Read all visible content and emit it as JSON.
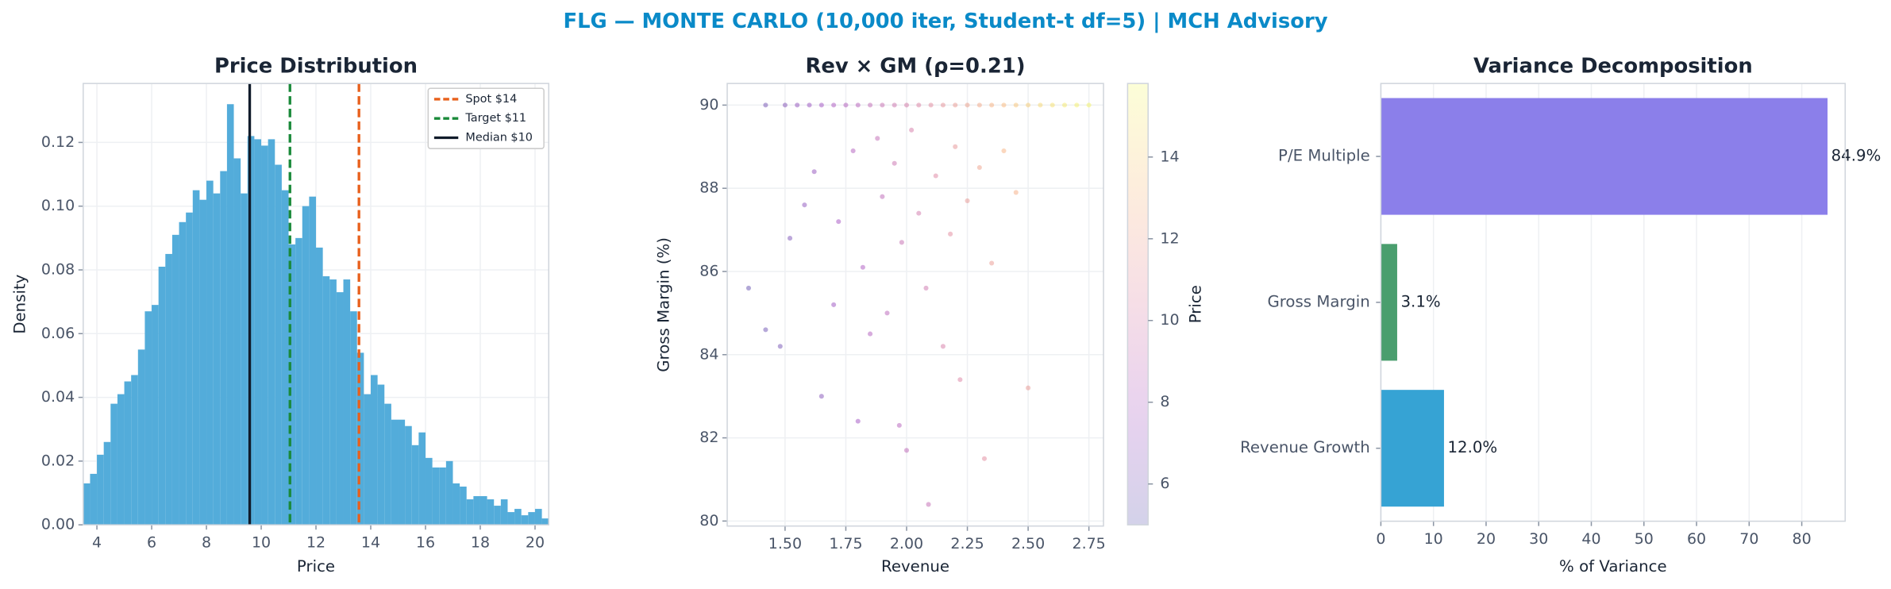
{
  "title": "FLG — MONTE CARLO (10,000 iter, Student-t df=5) | MCH Advisory",
  "chart_data": [
    {
      "type": "histogram",
      "title": "Price Distribution",
      "x_label": "Price",
      "y_label": "Density",
      "color": "#4aa8d8",
      "grid": true,
      "legend": "upper right",
      "bins": [
        3.5,
        3.75,
        4,
        4.25,
        4.5,
        4.75,
        5,
        5.25,
        5.5,
        5.75,
        6,
        6.25,
        6.5,
        6.75,
        7,
        7.25,
        7.5,
        7.75,
        8,
        8.25,
        8.5,
        8.75,
        9,
        9.25,
        9.5,
        9.75,
        10,
        10.25,
        10.5,
        10.75,
        11,
        11.25,
        11.5,
        11.75,
        12,
        12.25,
        12.5,
        12.75,
        13,
        13.25,
        13.5,
        13.75,
        14,
        14.25,
        14.5,
        14.75,
        15,
        15.25,
        15.5,
        15.75,
        16,
        16.25,
        16.5,
        16.75,
        17,
        17.25,
        17.5,
        17.75,
        18,
        18.25,
        18.5,
        18.75,
        19,
        19.25,
        19.5,
        19.75,
        20,
        20.25,
        20.5
      ],
      "values": [
        0.013,
        0.016,
        0.022,
        0.026,
        0.038,
        0.041,
        0.045,
        0.047,
        0.055,
        0.067,
        0.069,
        0.081,
        0.085,
        0.091,
        0.095,
        0.098,
        0.105,
        0.102,
        0.108,
        0.104,
        0.111,
        0.132,
        0.115,
        0.104,
        0.122,
        0.121,
        0.119,
        0.121,
        0.113,
        0.105,
        0.088,
        0.09,
        0.1,
        0.103,
        0.087,
        0.078,
        0.077,
        0.073,
        0.077,
        0.067,
        0.054,
        0.041,
        0.047,
        0.044,
        0.038,
        0.033,
        0.033,
        0.031,
        0.025,
        0.029,
        0.021,
        0.018,
        0.018,
        0.02,
        0.013,
        0.012,
        0.008,
        0.009,
        0.009,
        0.008,
        0.006,
        0.008,
        0.004,
        0.005,
        0.003,
        0.004,
        0.005,
        0.002
      ],
      "xlim": [
        3.5,
        20.5
      ],
      "xticks": [
        4,
        6,
        8,
        10,
        12,
        14,
        16,
        18,
        20
      ],
      "ylim": [
        0,
        0.1385
      ],
      "yticks": [
        {
          "value": 0,
          "label": "0.00"
        },
        {
          "value": 0.02,
          "label": "0.02"
        },
        {
          "value": 0.04,
          "label": "0.04"
        },
        {
          "value": 0.06,
          "label": "0.06"
        },
        {
          "value": 0.08,
          "label": "0.08"
        },
        {
          "value": 0.1,
          "label": "0.10"
        },
        {
          "value": 0.12,
          "label": "0.12"
        }
      ],
      "vlines": [
        {
          "name": "Spot $14",
          "value": 13.57,
          "color": "#e8601c",
          "linestyle": "dashed"
        },
        {
          "name": "Target $11",
          "value": 11.05,
          "color": "#1a8a3a",
          "linestyle": "dashed"
        },
        {
          "name": "Median $10",
          "value": 9.58,
          "color": "#111c2b",
          "linestyle": "solid"
        }
      ]
    },
    {
      "type": "scatter",
      "title": "Rev × GM (ρ=0.21)",
      "x_label": "Revenue",
      "y_label": "Gross Margin (%)",
      "grid": true,
      "colormap": "plasma",
      "x": [
        1.42,
        1.5,
        1.55,
        1.6,
        1.65,
        1.7,
        1.75,
        1.8,
        1.85,
        1.9,
        1.95,
        2.0,
        2.05,
        2.1,
        2.15,
        2.2,
        2.25,
        2.3,
        2.35,
        2.4,
        2.45,
        2.5,
        2.55,
        2.6,
        2.65,
        2.7,
        2.75,
        1.35,
        1.42,
        1.48,
        1.52,
        1.58,
        1.62,
        1.65,
        1.7,
        1.72,
        1.78,
        1.8,
        1.82,
        1.85,
        1.88,
        1.9,
        1.92,
        1.95,
        1.97,
        1.98,
        2.0,
        2.02,
        2.05,
        2.08,
        2.09,
        2.12,
        2.15,
        2.18,
        2.2,
        2.22,
        2.25,
        2.3,
        2.32,
        2.35,
        2.4,
        2.45,
        2.5
      ],
      "values": [
        90,
        90,
        90,
        90,
        90,
        90,
        90,
        90,
        90,
        90,
        90,
        90,
        90,
        90,
        90,
        90,
        90,
        90,
        90,
        90,
        90,
        90,
        90,
        90,
        90,
        90,
        90,
        85.6,
        84.6,
        84.2,
        86.8,
        87.6,
        88.4,
        83.0,
        85.2,
        87.2,
        88.9,
        82.4,
        86.1,
        84.5,
        89.2,
        87.8,
        85.0,
        88.6,
        82.3,
        86.7,
        81.7,
        89.4,
        87.4,
        85.6,
        80.4,
        88.3,
        84.2,
        86.9,
        89.0,
        83.4,
        87.7,
        88.5,
        81.5,
        86.2,
        88.9,
        87.9,
        83.2
      ],
      "color_values": [
        6,
        6.5,
        7,
        7.2,
        7.5,
        8,
        8.3,
        8.5,
        9,
        9.3,
        9.6,
        10,
        10.4,
        10.8,
        11.2,
        11.6,
        12,
        12.4,
        12.8,
        13.2,
        13.6,
        14,
        14.4,
        14.8,
        15.1,
        15.4,
        15.6,
        5.5,
        5.8,
        6,
        6.3,
        6.8,
        7,
        6.5,
        7.3,
        7.6,
        8.2,
        7.5,
        8,
        8.2,
        9,
        8.8,
        8.6,
        9.4,
        8.4,
        9.2,
        8.8,
        10,
        9.8,
        9.6,
        9.1,
        10.5,
        10.1,
        10.8,
        11.3,
        10.4,
        11.5,
        12,
        10.8,
        11.6,
        12.8,
        12.6,
        11.5
      ],
      "xlim": [
        1.262,
        2.81
      ],
      "xticks": [
        {
          "value": 1.5,
          "label": "1.50"
        },
        {
          "value": 1.75,
          "label": "1.75"
        },
        {
          "value": 2,
          "label": "2.00"
        },
        {
          "value": 2.25,
          "label": "2.25"
        },
        {
          "value": 2.5,
          "label": "2.50"
        },
        {
          "value": 2.75,
          "label": "2.75"
        }
      ],
      "ylim": [
        79.88,
        90.52
      ],
      "yticks": [
        80,
        82,
        84,
        86,
        88,
        90
      ],
      "colorbar_label": "Price",
      "clim": [
        5.0,
        15.8
      ],
      "cticks": [
        6,
        8,
        10,
        12,
        14
      ]
    },
    {
      "type": "barh",
      "title": "Variance Decomposition",
      "x_label": "% of Variance",
      "grid": true,
      "categories": [
        "P/E Multiple",
        "Gross Margin",
        "Revenue Growth"
      ],
      "values": [
        84.9,
        3.1,
        12.0
      ],
      "value_labels": [
        "84.9%",
        "3.1%",
        "12.0%"
      ],
      "colors": [
        "#8b7fea",
        "#4a9e6e",
        "#36a3d4"
      ],
      "xlim": [
        0,
        88.25
      ],
      "xticks": [
        0,
        10,
        20,
        30,
        40,
        50,
        60,
        70,
        80
      ]
    }
  ]
}
